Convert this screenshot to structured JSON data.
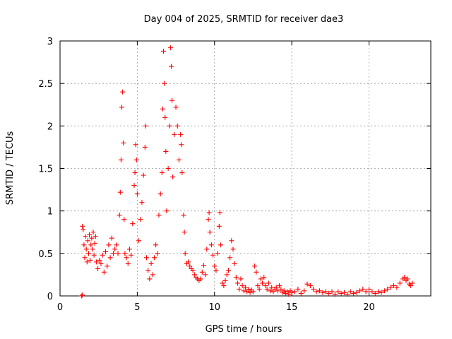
{
  "chart_data": {
    "type": "scatter",
    "title": "Day 004 of 2025, SRMTID for receiver dae3",
    "xlabel": "GPS time / hours",
    "ylabel": "SRMTID / TECUs",
    "xlim": [
      0,
      24
    ],
    "ylim": [
      0,
      3
    ],
    "xticks": [
      0,
      5,
      10,
      15,
      20
    ],
    "xtick_labels": [
      "0",
      "5",
      "10",
      "15",
      "20"
    ],
    "yticks": [
      0,
      0.5,
      1,
      1.5,
      2,
      2.5,
      3
    ],
    "ytick_labels": [
      "0",
      "0.5",
      "1",
      "1.5",
      "2",
      "2.5",
      "3"
    ],
    "grid": true,
    "marker": "+",
    "series": [
      {
        "name": "SRMTID",
        "color": "#ff0000",
        "points": [
          [
            1.4,
            0.0
          ],
          [
            1.45,
            0.01
          ],
          [
            1.45,
            0.82
          ],
          [
            1.5,
            0.78
          ],
          [
            1.55,
            0.6
          ],
          [
            1.6,
            0.45
          ],
          [
            1.65,
            0.7
          ],
          [
            1.7,
            0.55
          ],
          [
            1.75,
            0.4
          ],
          [
            1.8,
            0.65
          ],
          [
            1.85,
            0.5
          ],
          [
            1.9,
            0.72
          ],
          [
            1.95,
            0.42
          ],
          [
            2.0,
            0.6
          ],
          [
            2.05,
            0.68
          ],
          [
            2.1,
            0.55
          ],
          [
            2.15,
            0.75
          ],
          [
            2.2,
            0.48
          ],
          [
            2.25,
            0.62
          ],
          [
            2.3,
            0.7
          ],
          [
            2.35,
            0.4
          ],
          [
            2.45,
            0.32
          ],
          [
            2.55,
            0.42
          ],
          [
            2.65,
            0.38
          ],
          [
            2.75,
            0.48
          ],
          [
            2.85,
            0.28
          ],
          [
            2.95,
            0.52
          ],
          [
            3.05,
            0.35
          ],
          [
            3.15,
            0.6
          ],
          [
            3.25,
            0.45
          ],
          [
            3.35,
            0.68
          ],
          [
            3.45,
            0.5
          ],
          [
            3.55,
            0.55
          ],
          [
            3.65,
            0.6
          ],
          [
            3.75,
            0.5
          ],
          [
            3.85,
            0.95
          ],
          [
            3.9,
            1.22
          ],
          [
            3.95,
            1.6
          ],
          [
            4.0,
            2.22
          ],
          [
            4.05,
            2.4
          ],
          [
            4.1,
            1.8
          ],
          [
            4.15,
            0.9
          ],
          [
            4.2,
            0.5
          ],
          [
            4.3,
            0.45
          ],
          [
            4.4,
            0.38
          ],
          [
            4.5,
            0.55
          ],
          [
            4.6,
            0.48
          ],
          [
            4.7,
            0.85
          ],
          [
            4.8,
            1.3
          ],
          [
            4.85,
            1.45
          ],
          [
            4.9,
            1.78
          ],
          [
            4.95,
            1.6
          ],
          [
            5.0,
            1.2
          ],
          [
            5.1,
            0.65
          ],
          [
            5.2,
            0.9
          ],
          [
            5.3,
            1.1
          ],
          [
            5.4,
            1.42
          ],
          [
            5.5,
            1.75
          ],
          [
            5.55,
            2.0
          ],
          [
            5.6,
            0.45
          ],
          [
            5.7,
            0.3
          ],
          [
            5.8,
            0.2
          ],
          [
            5.9,
            0.38
          ],
          [
            6.0,
            0.25
          ],
          [
            6.1,
            0.45
          ],
          [
            6.2,
            0.6
          ],
          [
            6.3,
            0.5
          ],
          [
            6.4,
            0.95
          ],
          [
            6.5,
            1.2
          ],
          [
            6.6,
            1.45
          ],
          [
            6.65,
            2.2
          ],
          [
            6.7,
            2.88
          ],
          [
            6.75,
            2.5
          ],
          [
            6.8,
            2.1
          ],
          [
            6.85,
            1.7
          ],
          [
            6.9,
            1.0
          ],
          [
            7.0,
            1.5
          ],
          [
            7.1,
            2.0
          ],
          [
            7.15,
            2.92
          ],
          [
            7.2,
            2.7
          ],
          [
            7.25,
            2.3
          ],
          [
            7.3,
            1.4
          ],
          [
            7.4,
            1.9
          ],
          [
            7.5,
            2.22
          ],
          [
            7.6,
            2.0
          ],
          [
            7.7,
            1.6
          ],
          [
            7.8,
            1.9
          ],
          [
            7.85,
            1.78
          ],
          [
            7.9,
            1.45
          ],
          [
            8.0,
            0.95
          ],
          [
            8.05,
            0.75
          ],
          [
            8.1,
            0.5
          ],
          [
            8.2,
            0.38
          ],
          [
            8.3,
            0.4
          ],
          [
            8.4,
            0.35
          ],
          [
            8.5,
            0.32
          ],
          [
            8.6,
            0.3
          ],
          [
            8.7,
            0.25
          ],
          [
            8.8,
            0.22
          ],
          [
            8.9,
            0.2
          ],
          [
            9.0,
            0.18
          ],
          [
            9.1,
            0.2
          ],
          [
            9.2,
            0.28
          ],
          [
            9.3,
            0.36
          ],
          [
            9.4,
            0.25
          ],
          [
            9.5,
            0.55
          ],
          [
            9.6,
            0.9
          ],
          [
            9.65,
            0.98
          ],
          [
            9.7,
            0.75
          ],
          [
            9.8,
            0.6
          ],
          [
            9.9,
            0.48
          ],
          [
            10.0,
            0.35
          ],
          [
            10.1,
            0.3
          ],
          [
            10.2,
            0.5
          ],
          [
            10.3,
            0.82
          ],
          [
            10.35,
            0.98
          ],
          [
            10.4,
            0.6
          ],
          [
            10.5,
            0.15
          ],
          [
            10.6,
            0.12
          ],
          [
            10.7,
            0.18
          ],
          [
            10.8,
            0.25
          ],
          [
            10.9,
            0.3
          ],
          [
            11.0,
            0.45
          ],
          [
            11.1,
            0.65
          ],
          [
            11.2,
            0.55
          ],
          [
            11.3,
            0.38
          ],
          [
            11.4,
            0.22
          ],
          [
            11.5,
            0.15
          ],
          [
            11.6,
            0.08
          ],
          [
            11.7,
            0.2
          ],
          [
            11.8,
            0.12
          ],
          [
            11.9,
            0.06
          ],
          [
            12.0,
            0.1
          ],
          [
            12.1,
            0.05
          ],
          [
            12.2,
            0.08
          ],
          [
            12.3,
            0.04
          ],
          [
            12.4,
            0.07
          ],
          [
            12.5,
            0.05
          ],
          [
            12.6,
            0.35
          ],
          [
            12.7,
            0.28
          ],
          [
            12.8,
            0.12
          ],
          [
            12.9,
            0.08
          ],
          [
            13.0,
            0.2
          ],
          [
            13.1,
            0.15
          ],
          [
            13.2,
            0.22
          ],
          [
            13.3,
            0.12
          ],
          [
            13.4,
            0.08
          ],
          [
            13.5,
            0.15
          ],
          [
            13.6,
            0.06
          ],
          [
            13.7,
            0.1
          ],
          [
            13.8,
            0.05
          ],
          [
            13.9,
            0.08
          ],
          [
            14.0,
            0.1
          ],
          [
            14.1,
            0.06
          ],
          [
            14.2,
            0.12
          ],
          [
            14.3,
            0.08
          ],
          [
            14.4,
            0.04
          ],
          [
            14.5,
            0.06
          ],
          [
            14.6,
            0.03
          ],
          [
            14.7,
            0.05
          ],
          [
            14.8,
            0.02
          ],
          [
            14.9,
            0.06
          ],
          [
            15.0,
            0.04
          ],
          [
            15.2,
            0.05
          ],
          [
            15.4,
            0.08
          ],
          [
            15.6,
            0.03
          ],
          [
            15.8,
            0.06
          ],
          [
            16.0,
            0.14
          ],
          [
            16.2,
            0.12
          ],
          [
            16.4,
            0.08
          ],
          [
            16.6,
            0.05
          ],
          [
            16.8,
            0.06
          ],
          [
            17.0,
            0.04
          ],
          [
            17.2,
            0.05
          ],
          [
            17.4,
            0.03
          ],
          [
            17.6,
            0.05
          ],
          [
            17.8,
            0.02
          ],
          [
            18.0,
            0.05
          ],
          [
            18.2,
            0.03
          ],
          [
            18.4,
            0.04
          ],
          [
            18.6,
            0.02
          ],
          [
            18.8,
            0.05
          ],
          [
            19.0,
            0.03
          ],
          [
            19.2,
            0.04
          ],
          [
            19.4,
            0.06
          ],
          [
            19.6,
            0.08
          ],
          [
            19.8,
            0.05
          ],
          [
            20.0,
            0.08
          ],
          [
            20.2,
            0.05
          ],
          [
            20.4,
            0.03
          ],
          [
            20.6,
            0.05
          ],
          [
            20.8,
            0.04
          ],
          [
            21.0,
            0.06
          ],
          [
            21.2,
            0.08
          ],
          [
            21.4,
            0.1
          ],
          [
            21.6,
            0.12
          ],
          [
            21.8,
            0.1
          ],
          [
            22.0,
            0.15
          ],
          [
            22.2,
            0.2
          ],
          [
            22.3,
            0.22
          ],
          [
            22.4,
            0.18
          ],
          [
            22.5,
            0.2
          ],
          [
            22.6,
            0.14
          ],
          [
            22.7,
            0.12
          ],
          [
            22.8,
            0.15
          ]
        ]
      }
    ]
  }
}
